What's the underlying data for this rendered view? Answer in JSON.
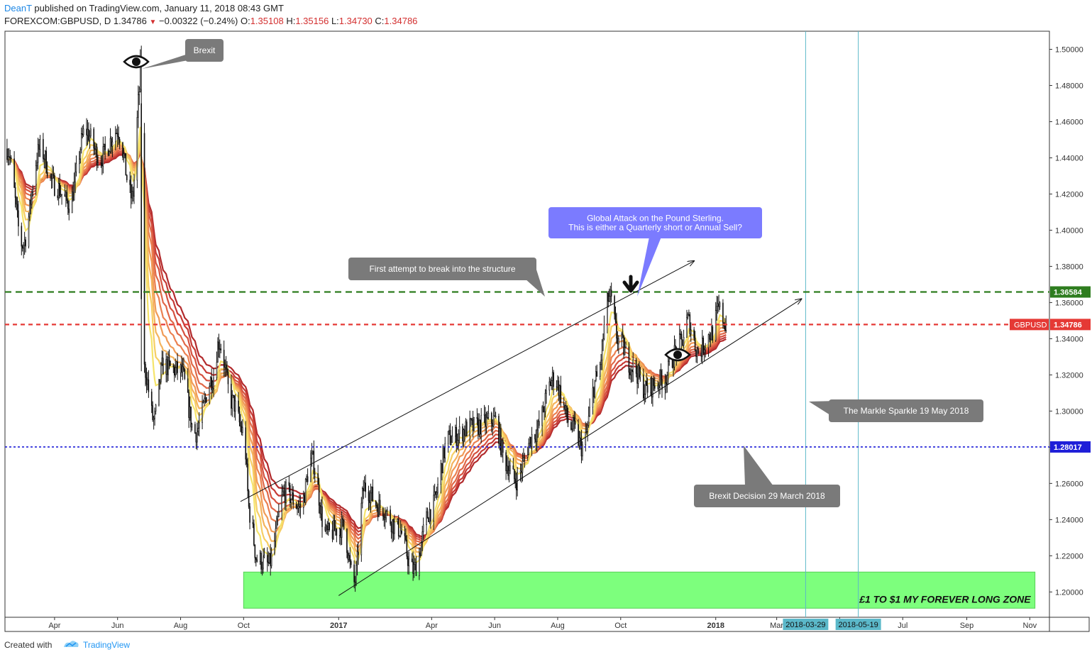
{
  "header": {
    "author": "DeanT",
    "published_text": "published on TradingView.com, January 11, 2018 08:43 GMT",
    "symbol": "FOREXCOM:GBPUSD, D",
    "last": "1.34786",
    "change": "−0.00322 (−0.24%)",
    "open_label": "O:",
    "open": "1.35108",
    "high_label": "H:",
    "high": "1.35156",
    "low_label": "L:",
    "low": "1.34730",
    "close_label": "C:",
    "close": "1.34786"
  },
  "footer": {
    "created_with": "Created with",
    "brand": "TradingView"
  },
  "chart_data": {
    "type": "candlestick",
    "symbol": "GBPUSD",
    "y_ticks": [
      "1.50000",
      "1.48000",
      "1.46000",
      "1.44000",
      "1.42000",
      "1.40000",
      "1.38000",
      "1.36000",
      "1.34000",
      "1.32000",
      "1.30000",
      "1.28000",
      "1.26000",
      "1.24000",
      "1.22000",
      "1.20000"
    ],
    "ylim": [
      1.186,
      1.51
    ],
    "x_ticks": [
      {
        "label": "Apr",
        "date": "2016-04-01",
        "bold": false
      },
      {
        "label": "Jun",
        "date": "2016-06-01",
        "bold": false
      },
      {
        "label": "Aug",
        "date": "2016-08-01",
        "bold": false
      },
      {
        "label": "Oct",
        "date": "2016-10-01",
        "bold": false
      },
      {
        "label": "2017",
        "date": "2017-01-01",
        "bold": true
      },
      {
        "label": "Apr",
        "date": "2017-04-01",
        "bold": false
      },
      {
        "label": "Jun",
        "date": "2017-06-01",
        "bold": false
      },
      {
        "label": "Aug",
        "date": "2017-08-01",
        "bold": false
      },
      {
        "label": "Oct",
        "date": "2017-10-01",
        "bold": false
      },
      {
        "label": "2018",
        "date": "2018-01-01",
        "bold": true
      },
      {
        "label": "Mar",
        "date": "2018-03-01",
        "bold": false
      },
      {
        "label": "M",
        "date": "2018-05-01",
        "bold": false
      },
      {
        "label": "Jul",
        "date": "2018-07-01",
        "bold": false
      },
      {
        "label": "Sep",
        "date": "2018-09-01",
        "bold": false
      },
      {
        "label": "Nov",
        "date": "2018-11-01",
        "bold": false
      }
    ],
    "xlim": [
      "2016-02-13",
      "2018-11-20"
    ],
    "price_path": [
      [
        "2016-02-15",
        1.445
      ],
      [
        "2016-03-01",
        1.392
      ],
      [
        "2016-03-18",
        1.445
      ],
      [
        "2016-04-01",
        1.425
      ],
      [
        "2016-04-15",
        1.415
      ],
      [
        "2016-05-01",
        1.455
      ],
      [
        "2016-05-15",
        1.44
      ],
      [
        "2016-06-01",
        1.455
      ],
      [
        "2016-06-15",
        1.418
      ],
      [
        "2016-06-23",
        1.48
      ],
      [
        "2016-06-27",
        1.323
      ],
      [
        "2016-07-06",
        1.295
      ],
      [
        "2016-07-15",
        1.325
      ],
      [
        "2016-08-01",
        1.322
      ],
      [
        "2016-08-15",
        1.288
      ],
      [
        "2016-09-01",
        1.318
      ],
      [
        "2016-09-07",
        1.338
      ],
      [
        "2016-09-20",
        1.305
      ],
      [
        "2016-10-01",
        1.288
      ],
      [
        "2016-10-07",
        1.243
      ],
      [
        "2016-10-14",
        1.218
      ],
      [
        "2016-10-25",
        1.215
      ],
      [
        "2016-11-10",
        1.255
      ],
      [
        "2016-11-25",
        1.247
      ],
      [
        "2016-12-06",
        1.273
      ],
      [
        "2016-12-20",
        1.232
      ],
      [
        "2017-01-05",
        1.236
      ],
      [
        "2017-01-16",
        1.205
      ],
      [
        "2017-01-26",
        1.258
      ],
      [
        "2017-02-10",
        1.247
      ],
      [
        "2017-02-28",
        1.235
      ],
      [
        "2017-03-14",
        1.212
      ],
      [
        "2017-03-31",
        1.245
      ],
      [
        "2017-04-18",
        1.285
      ],
      [
        "2017-05-10",
        1.291
      ],
      [
        "2017-06-01",
        1.295
      ],
      [
        "2017-06-12",
        1.271
      ],
      [
        "2017-06-21",
        1.262
      ],
      [
        "2017-07-10",
        1.288
      ],
      [
        "2017-07-28",
        1.318
      ],
      [
        "2017-08-15",
        1.291
      ],
      [
        "2017-08-25",
        1.28
      ],
      [
        "2017-09-08",
        1.318
      ],
      [
        "2017-09-20",
        1.363
      ],
      [
        "2017-09-29",
        1.339
      ],
      [
        "2017-10-12",
        1.325
      ],
      [
        "2017-10-25",
        1.312
      ],
      [
        "2017-11-10",
        1.317
      ],
      [
        "2017-11-28",
        1.337
      ],
      [
        "2017-12-05",
        1.35
      ],
      [
        "2017-12-15",
        1.333
      ],
      [
        "2017-12-28",
        1.343
      ],
      [
        "2018-01-04",
        1.356
      ],
      [
        "2018-01-11",
        1.3479
      ]
    ],
    "horizontal_lines": [
      {
        "price": 1.36584,
        "label": "1.36584",
        "color": "#2e7d1f",
        "style": "dashed-long"
      },
      {
        "price": 1.34786,
        "label": "1.34786",
        "tag": "GBPUSD",
        "color": "#e53935",
        "style": "dashed"
      },
      {
        "price": 1.28017,
        "label": "1.28017",
        "color": "#1e1ed8",
        "style": "dotted"
      }
    ],
    "vertical_lines": [
      {
        "date": "2018-03-29",
        "label": "2018-03-29"
      },
      {
        "date": "2018-05-19",
        "label": "2018-05-19"
      }
    ],
    "channel_lines": [
      {
        "from": [
          "2016-09-28",
          1.25
        ],
        "to": [
          "2017-12-11",
          1.383
        ]
      },
      {
        "from": [
          "2017-01-01",
          1.198
        ],
        "to": [
          "2018-03-25",
          1.362
        ]
      }
    ],
    "zone": {
      "from": "2016-10-01",
      "to": "2018-11-06",
      "top": 1.211,
      "bottom": 1.191,
      "label": "£1 TO $1 MY FOREVER LONG ZONE"
    },
    "annotations": [
      {
        "text": "Brexit"
      },
      {
        "text": "First attempt to break into the structure"
      },
      {
        "text": "Global Attack on the Pound Sterling.\nThis is either a Quarterly short or Annual Sell?"
      },
      {
        "text": "The Markle Sparkle 19 May 2018"
      },
      {
        "text": "Brexit Decision 29 March 2018"
      }
    ]
  },
  "colors": {
    "up_candle": "#000000",
    "zone_fill": "#7dff7d",
    "zone_border": "#55d155",
    "callout_gray": "#7a7a7a",
    "callout_blue": "#7b7bff",
    "axis_tag_bg": "#5bb8c9",
    "ribbon": [
      "#f5e46b",
      "#f6ce64",
      "#f4b35c",
      "#f09a56",
      "#eb8050",
      "#e06848",
      "#d5513f",
      "#c63b36",
      "#b22a2c"
    ]
  }
}
